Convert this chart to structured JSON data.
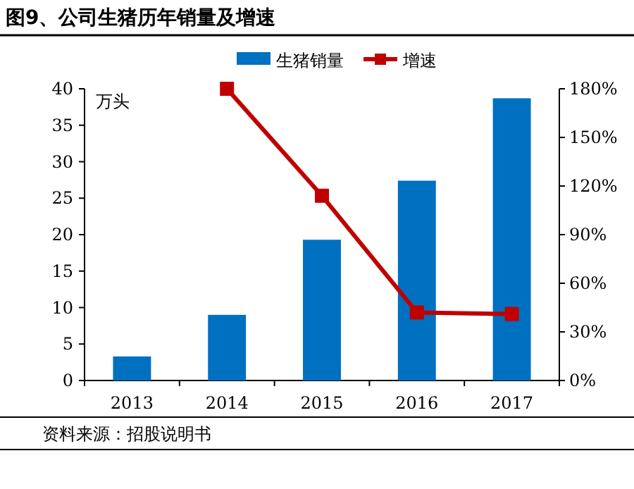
{
  "chart_data": {
    "type": "bar",
    "title": "图9、公司生猪历年销量及增速",
    "ylabel": "万头",
    "categories": [
      "2013",
      "2014",
      "2015",
      "2016",
      "2017"
    ],
    "series": [
      {
        "name": "生猪销量",
        "color": "#0070c0",
        "values": [
          3.3,
          9.0,
          19.3,
          27.4,
          38.7
        ]
      },
      {
        "name": "增速",
        "type": "line",
        "axis": "y2",
        "color": "#c00000",
        "marker": "square",
        "values": [
          null,
          180,
          114,
          42,
          41
        ]
      }
    ],
    "ylim": [
      0,
      40
    ],
    "yticks": [
      0,
      5,
      10,
      15,
      20,
      25,
      30,
      35,
      40
    ],
    "y2lim": [
      0,
      180
    ],
    "y2ticks": [
      {
        "value": 0,
        "label": "0%"
      },
      {
        "value": 30,
        "label": "30%"
      },
      {
        "value": 60,
        "label": "60%"
      },
      {
        "value": 90,
        "label": "90%"
      },
      {
        "value": 120,
        "label": "120%"
      },
      {
        "value": 150,
        "label": "150%"
      },
      {
        "value": 180,
        "label": "180%"
      }
    ],
    "legend": "top",
    "grid": false,
    "annotations": [
      "资料来源：招股说明书"
    ]
  }
}
